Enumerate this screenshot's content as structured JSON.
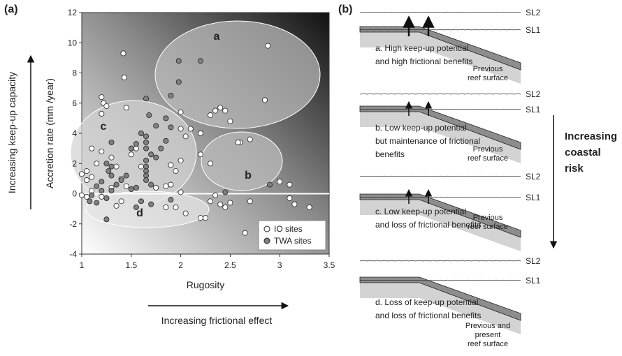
{
  "chart_data": {
    "type": "scatter",
    "panel_label": "(a)",
    "xlabel": "Rugosity",
    "ylabel": "Accretion rate (mm /year)",
    "x_arrow_label": "Increasing frictional effect",
    "y_arrow_label": "Increasing keep-up capacity",
    "xlim": [
      1,
      3.5
    ],
    "ylim": [
      -4,
      12
    ],
    "xticks": [
      1,
      1.5,
      2,
      2.5,
      3,
      3.5
    ],
    "yticks": [
      -4,
      -2,
      0,
      2,
      4,
      6,
      8,
      10,
      12
    ],
    "reference_line": 0,
    "regions": [
      "a",
      "b",
      "c",
      "d"
    ],
    "legend": "lower right",
    "series": [
      {
        "name": "IO sites",
        "color": "#ffffff",
        "x": [
          2.88,
          2.85,
          2.0,
          2.3,
          2.35,
          2.4,
          2.45,
          2.5,
          2.2,
          2.1,
          2.0,
          2.05,
          1.2,
          1.22,
          1.25,
          1.2,
          1.42,
          1.43,
          1.45,
          1.1,
          1.05,
          1.0,
          1.1,
          1.05,
          1.15,
          1.2,
          1.3,
          1.35,
          1.5,
          1.55,
          1.6,
          1.9,
          1.95,
          2.0,
          2.2,
          2.3,
          2.6,
          2.7,
          2.58,
          3.0,
          3.1,
          3.1,
          3.15,
          3.3,
          2.65,
          2.7,
          2.5,
          2.45,
          2.2,
          2.25,
          2.05,
          1.85,
          1.95,
          2.3,
          2.4,
          1.75,
          1.85,
          1.9,
          2.0,
          1.4,
          1.45,
          1.3,
          1.2,
          1.0,
          1.05,
          1.1,
          2.35,
          1.4,
          1.35
        ],
        "values": [
          9.8,
          6.2,
          5.4,
          5.2,
          5.5,
          5.7,
          5.5,
          4.8,
          4.0,
          4.3,
          4.3,
          3.8,
          6.4,
          6.0,
          5.8,
          5.3,
          9.3,
          7.7,
          5.7,
          3.0,
          1.5,
          1.3,
          1.1,
          0.9,
          2.0,
          2.8,
          2.4,
          1.8,
          2.6,
          3.0,
          1.8,
          1.9,
          1.5,
          2.2,
          2.6,
          2.0,
          3.4,
          3.6,
          3.4,
          0.8,
          0.6,
          -0.3,
          -0.7,
          -0.9,
          -2.6,
          -0.5,
          -0.6,
          -0.9,
          -1.6,
          -1.6,
          -1.3,
          -0.9,
          -0.9,
          -0.5,
          -0.7,
          0.4,
          0.5,
          0.6,
          0.1,
          1.0,
          0.5,
          0.4,
          -0.2,
          -0.1,
          -0.2,
          0.2,
          -0.1,
          -0.5,
          -0.8
        ]
      },
      {
        "name": "TWA sites",
        "color": "#808080",
        "x": [
          1.98,
          2.2,
          1.98,
          1.9,
          1.65,
          1.68,
          1.85,
          1.75,
          1.9,
          1.6,
          1.65,
          1.65,
          1.65,
          1.7,
          1.65,
          1.65,
          1.65,
          1.65,
          1.65,
          1.7,
          1.5,
          1.55,
          1.85,
          1.8,
          1.75,
          1.3,
          1.25,
          1.27,
          1.3,
          1.3,
          1.2,
          1.15,
          1.2,
          1.1,
          1.08,
          1.15,
          1.25,
          1.3,
          1.35,
          1.4,
          1.45,
          1.5,
          1.55,
          1.25,
          1.55,
          1.7,
          1.6,
          2.45,
          2.9,
          1.9
        ],
        "values": [
          8.8,
          8.8,
          7.4,
          6.5,
          6.3,
          5.2,
          5.0,
          4.5,
          4.4,
          4.0,
          3.8,
          3.4,
          3.0,
          2.6,
          2.2,
          1.8,
          1.5,
          1.2,
          0.9,
          0.6,
          3.0,
          3.3,
          3.5,
          3.0,
          2.4,
          3.4,
          2.0,
          1.5,
          1.2,
          1.8,
          0.8,
          0.5,
          0.2,
          -0.1,
          -0.5,
          -0.6,
          -0.3,
          0.2,
          0.6,
          0.9,
          1.2,
          0.3,
          0.4,
          -1.7,
          -0.9,
          -0.7,
          -0.5,
          0.1,
          0.6,
          -0.4
        ]
      }
    ]
  },
  "panel_b": {
    "label": "(b)",
    "scenarios": [
      {
        "sl2": "SL2",
        "sl1": "SL1",
        "caption": [
          "a. High keep-up potential",
          "and high frictional benefits"
        ],
        "surface": [
          "Previous",
          "reef surface"
        ]
      },
      {
        "sl2": "SL2",
        "sl1": "SL1",
        "caption": [
          "b. Low keep-up potential",
          "but maintenance of frictional",
          "benefits"
        ],
        "surface": [
          "Previous",
          "reef surface"
        ]
      },
      {
        "sl2": "SL2",
        "sl1": "SL1",
        "caption": [
          "c. Low keep-up potential",
          "and loss of frictional benefits"
        ],
        "surface": [
          "Previous",
          "reef surface"
        ]
      },
      {
        "sl2": "SL2",
        "sl1": "SL1",
        "caption": [
          "d. Loss of keep-up potential",
          "and loss of frictional benefits"
        ],
        "surface": [
          "Previous and",
          "present",
          "reef surface"
        ]
      }
    ],
    "risk": [
      "Increasing",
      "coastal",
      "risk"
    ]
  }
}
